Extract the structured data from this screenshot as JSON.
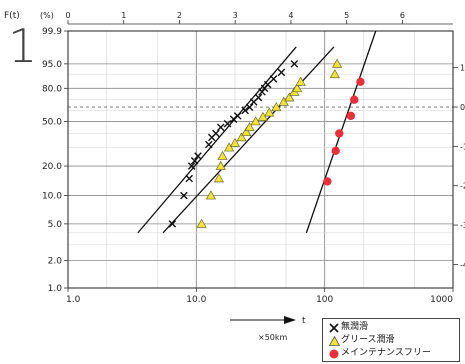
{
  "chart_data": {
    "type": "scatter",
    "x_scale": "log",
    "y_scale": "weibull",
    "xlim": [
      1,
      1000
    ],
    "ylim": [
      1,
      99.9
    ],
    "x_ticks": [
      1,
      10,
      100,
      1000
    ],
    "x_tick_labels": [
      "1.0",
      "10.0",
      "100",
      "1000"
    ],
    "y_ticks": [
      1,
      2,
      5,
      10,
      20,
      50,
      80,
      95,
      99.9
    ],
    "y_tick_labels": [
      "1.0",
      "2.0",
      "5.0",
      "10.0",
      "20.0",
      "50.0",
      "80.0",
      "95.0",
      "99.9"
    ],
    "y_axis_title": "F(t)",
    "y_axis_unit": "(%)",
    "big_glyph": "1",
    "top_scale_labels": [
      "0",
      "1",
      "2",
      "3",
      "4",
      "5",
      "6"
    ],
    "right_scale_labels": [
      "1",
      "0",
      "-1",
      "-2",
      "-3",
      "-4"
    ],
    "x_arrow_label": "t",
    "x_unit_label": "×50km",
    "series": [
      {
        "name": "無潤滑",
        "marker": "x",
        "color": "#111111",
        "points": [
          [
            6.5,
            5
          ],
          [
            8,
            10
          ],
          [
            8.8,
            15
          ],
          [
            9.2,
            20
          ],
          [
            9.7,
            22.5
          ],
          [
            10.3,
            25
          ],
          [
            12.5,
            32
          ],
          [
            13.2,
            37
          ],
          [
            14.2,
            40
          ],
          [
            15.5,
            45
          ],
          [
            17.5,
            48
          ],
          [
            19.5,
            52
          ],
          [
            21,
            55
          ],
          [
            24,
            60
          ],
          [
            26,
            63
          ],
          [
            28,
            68
          ],
          [
            30.5,
            72
          ],
          [
            32.5,
            77
          ],
          [
            34,
            80
          ],
          [
            36,
            83
          ],
          [
            40,
            87
          ],
          [
            46,
            91
          ],
          [
            58,
            95
          ]
        ],
        "fit_line": [
          [
            3.5,
            4
          ],
          [
            60,
            99
          ]
        ]
      },
      {
        "name": "グリース潤滑",
        "marker": "triangle",
        "color": "#f2e33a",
        "points": [
          [
            11,
            5
          ],
          [
            13,
            10
          ],
          [
            15,
            15
          ],
          [
            15.5,
            20
          ],
          [
            16,
            25
          ],
          [
            18,
            30
          ],
          [
            20,
            33
          ],
          [
            22.5,
            37
          ],
          [
            24.5,
            41
          ],
          [
            26,
            45
          ],
          [
            29,
            50
          ],
          [
            33,
            54
          ],
          [
            37,
            58
          ],
          [
            42,
            63
          ],
          [
            48,
            68
          ],
          [
            53,
            72
          ],
          [
            58,
            77
          ],
          [
            61,
            80
          ],
          [
            65,
            85
          ],
          [
            120,
            90
          ],
          [
            125,
            95
          ]
        ],
        "fit_line": [
          [
            5.5,
            4
          ],
          [
            118,
            99
          ]
        ]
      },
      {
        "name": "メインテナンスフリー",
        "marker": "circle",
        "color": "#e8313a",
        "points": [
          [
            105,
            14
          ],
          [
            122,
            28
          ],
          [
            130,
            40
          ],
          [
            160,
            55
          ],
          [
            170,
            70
          ],
          [
            190,
            85
          ]
        ],
        "fit_line": [
          [
            72,
            4
          ],
          [
            250,
            99.9
          ]
        ]
      }
    ]
  }
}
